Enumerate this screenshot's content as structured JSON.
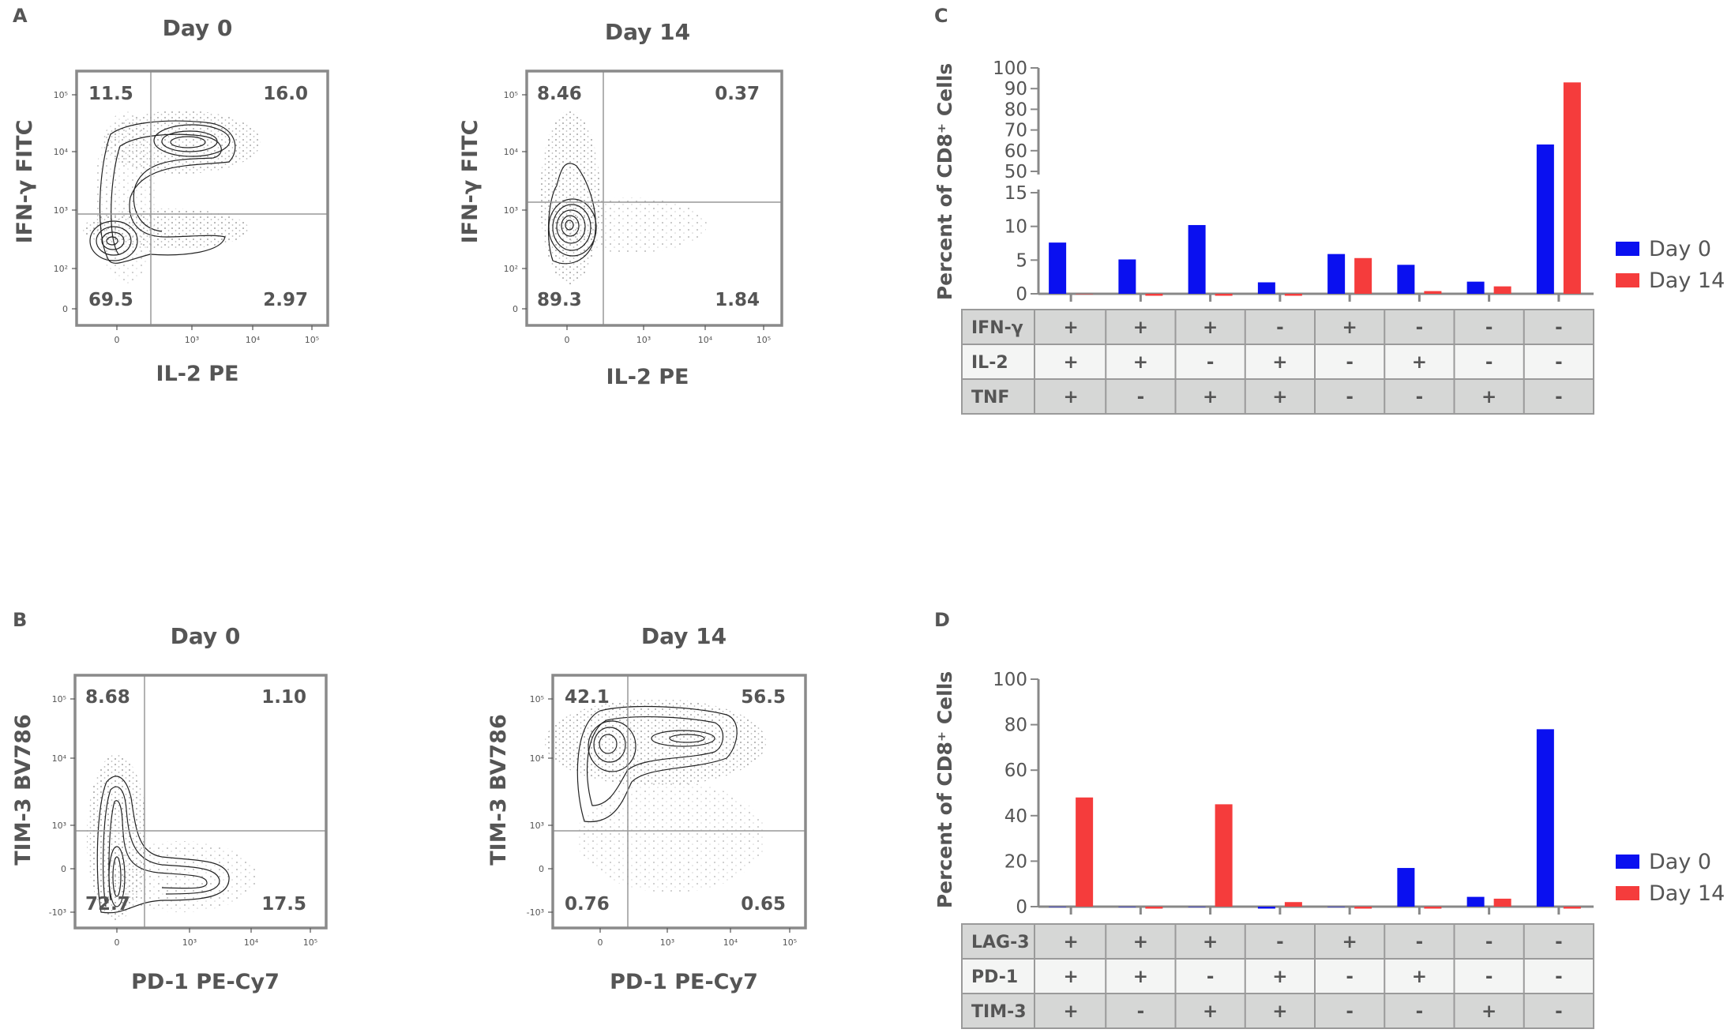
{
  "panel_labels": {
    "A": "A",
    "B": "B",
    "C": "C",
    "D": "D"
  },
  "flow_tick_labels": {
    "x": [
      "0",
      "10³",
      "10⁴",
      "10⁵"
    ],
    "y_top": [
      "10⁵",
      "10⁴",
      "10³",
      "10²",
      "0"
    ],
    "y_bottom": [
      "10⁵",
      "10⁴",
      "10³",
      "0",
      "-10³"
    ]
  },
  "flow_plots": [
    {
      "id": "A1",
      "title": "Day 0",
      "xlabel": "IL-2 PE",
      "ylabel": "IFN-γ FITC",
      "quadrants": {
        "ul": "11.5",
        "ur": "16.0",
        "ll": "69.5",
        "lr": "2.97"
      }
    },
    {
      "id": "A2",
      "title": "Day 14",
      "xlabel": "IL-2 PE",
      "ylabel": "IFN-γ FITC",
      "quadrants": {
        "ul": "8.46",
        "ur": "0.37",
        "ll": "89.3",
        "lr": "1.84"
      }
    },
    {
      "id": "B1",
      "title": "Day 0",
      "xlabel": "PD-1 PE-Cy7",
      "ylabel": "TIM-3 BV786",
      "quadrants": {
        "ul": "8.68",
        "ur": "1.10",
        "ll": "72.7",
        "lr": "17.5"
      }
    },
    {
      "id": "B2",
      "title": "Day 14",
      "xlabel": "PD-1 PE-Cy7",
      "ylabel": "TIM-3 BV786",
      "quadrants": {
        "ul": "42.1",
        "ur": "56.5",
        "ll": "0.76",
        "lr": "0.65"
      }
    }
  ],
  "colors": {
    "day0": "#0a10f0",
    "day14": "#f53c3c",
    "axis": "#888888",
    "table_dark": "#d6d7d6",
    "table_light": "#f4f5f4"
  },
  "chart_data": [
    {
      "id": "C",
      "type": "bar",
      "ylabel": "Percent of CD8⁺ Cells",
      "y_break": true,
      "ylim_lower": [
        0,
        15
      ],
      "ylim_upper": [
        50,
        100
      ],
      "yticks_lower": [
        "0",
        "5",
        "10",
        "15"
      ],
      "yticks_upper": [
        "50",
        "60",
        "70",
        "80",
        "90",
        "100"
      ],
      "series": [
        {
          "name": "Day 0",
          "values": [
            7.6,
            5.1,
            10.2,
            1.7,
            5.9,
            4.3,
            1.8,
            63
          ]
        },
        {
          "name": "Day 14",
          "values": [
            0,
            -0.2,
            -0.1,
            -0.4,
            5.3,
            0.4,
            1.1,
            93
          ]
        }
      ],
      "table": {
        "rows": [
          "IFN-γ",
          "IL-2",
          "TNF"
        ],
        "cells": [
          [
            "+",
            "+",
            "+",
            "-",
            "+",
            "-",
            "-",
            "-"
          ],
          [
            "+",
            "+",
            "-",
            "+",
            "-",
            "+",
            "-",
            "-"
          ],
          [
            "+",
            "-",
            "+",
            "+",
            "-",
            "-",
            "+",
            "-"
          ]
        ]
      }
    },
    {
      "id": "D",
      "type": "bar",
      "ylabel": "Percent of CD8⁺ Cells",
      "ylim": [
        0,
        100
      ],
      "yticks": [
        "0",
        "20",
        "40",
        "60",
        "80",
        "100"
      ],
      "series": [
        {
          "name": "Day 0",
          "values": [
            0,
            0,
            0,
            -0.3,
            0,
            17,
            4.3,
            78
          ]
        },
        {
          "name": "Day 14",
          "values": [
            48,
            -0.3,
            45,
            2,
            -0.2,
            -0.7,
            3.5,
            -0.3
          ]
        }
      ],
      "table": {
        "rows": [
          "LAG-3",
          "PD-1",
          "TIM-3"
        ],
        "cells": [
          [
            "+",
            "+",
            "+",
            "-",
            "+",
            "-",
            "-",
            "-"
          ],
          [
            "+",
            "+",
            "-",
            "+",
            "-",
            "+",
            "-",
            "-"
          ],
          [
            "+",
            "-",
            "+",
            "+",
            "-",
            "-",
            "+",
            "-"
          ]
        ]
      }
    }
  ]
}
